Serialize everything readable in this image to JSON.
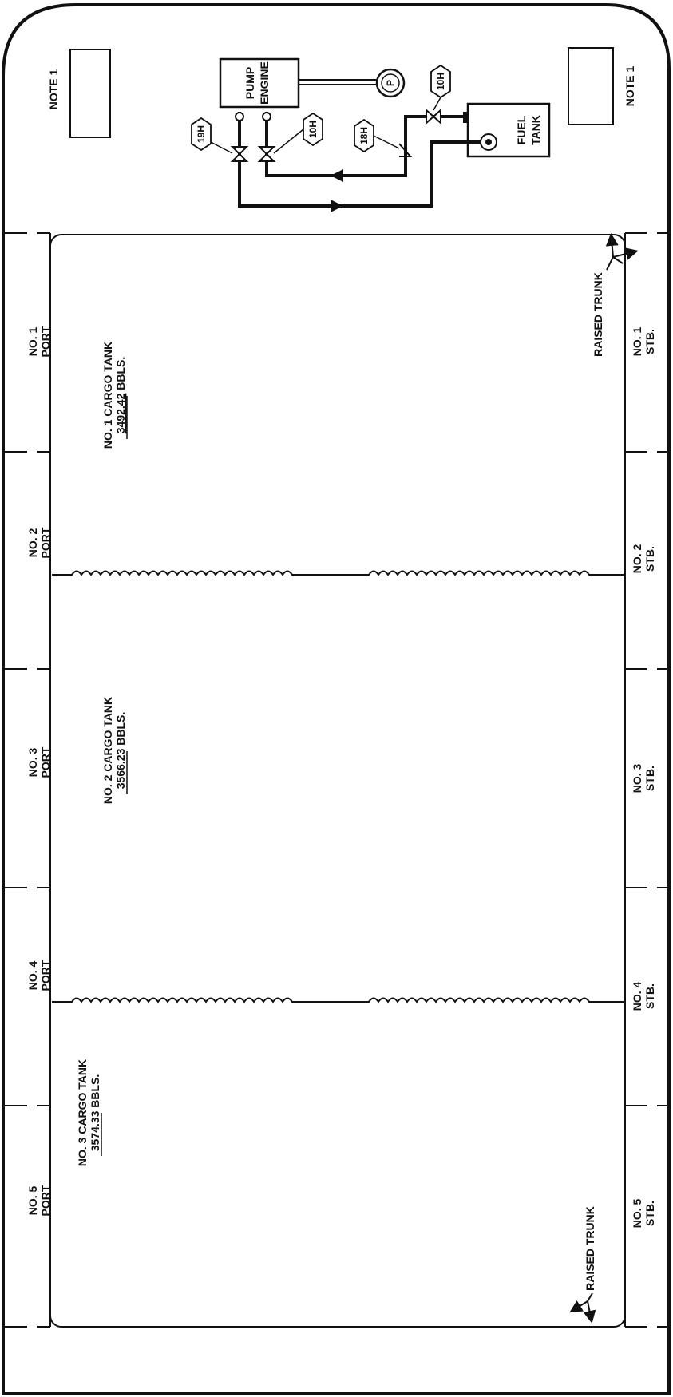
{
  "notes": {
    "port_note": "NOTE 1",
    "stb_note": "NOTE 1"
  },
  "pump": {
    "engine_line1": "PUMP",
    "engine_line2": "ENGINE",
    "gauge": "P",
    "fuel_tank_line1": "FUEL",
    "fuel_tank_line2": "TANK",
    "valves": [
      "19H",
      "10H",
      "18H",
      "10H"
    ]
  },
  "voids": {
    "port": [
      {
        "line1": "NO. 1",
        "line2": "PORT"
      },
      {
        "line1": "NO. 2",
        "line2": "PORT"
      },
      {
        "line1": "NO. 3",
        "line2": "PORT"
      },
      {
        "line1": "NO. 4",
        "line2": "PORT"
      },
      {
        "line1": "NO. 5",
        "line2": "PORT"
      }
    ],
    "stb": [
      {
        "line1": "NO. 1",
        "line2": "STB."
      },
      {
        "line1": "NO. 2",
        "line2": "STB."
      },
      {
        "line1": "NO. 3",
        "line2": "STB."
      },
      {
        "line1": "NO. 4",
        "line2": "STB."
      },
      {
        "line1": "NO. 5",
        "line2": "STB."
      }
    ]
  },
  "cargo_tanks": [
    {
      "title": "NO. 1 CARGO TANK",
      "volume": "3492.42",
      "unit": "BBLS."
    },
    {
      "title": "NO. 2 CARGO TANK",
      "volume": "3566.23",
      "unit": "BBLS."
    },
    {
      "title": "NO. 3 CARGO TANK",
      "volume": "3574.33",
      "unit": "BBLS."
    }
  ],
  "raised_trunk": {
    "top": "RAISED TRUNK",
    "bottom": "RAISED TRUNK"
  }
}
